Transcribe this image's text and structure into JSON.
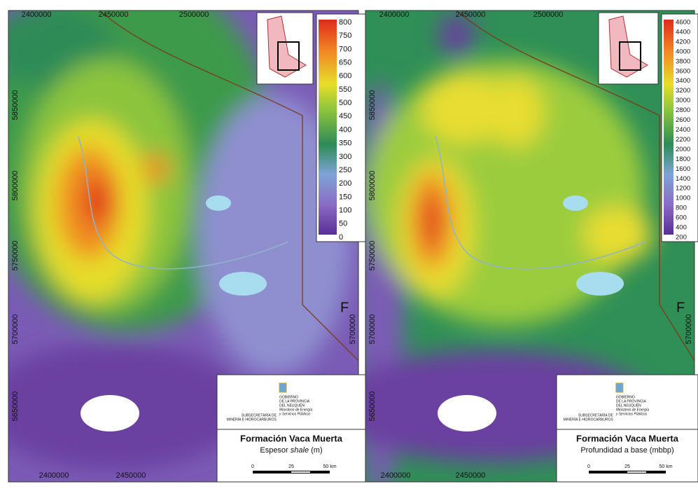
{
  "panels": [
    {
      "top_labels": [
        "2400000",
        "2450000",
        "2500000"
      ],
      "bottom_labels": [
        "2400000",
        "2450000"
      ],
      "left_labels": [
        "5850000",
        "5800000",
        "5750000",
        "5700000",
        "5650000"
      ],
      "right_labels": [
        "5700000"
      ],
      "edge_letter": "F",
      "legend": [
        "800",
        "750",
        "700",
        "650",
        "600",
        "550",
        "500",
        "450",
        "400",
        "350",
        "300",
        "250",
        "200",
        "150",
        "100",
        "50",
        "0"
      ],
      "agency": [
        "SUBSECRETARÍA DE",
        "MINERÍA E HIDROCARBUROS"
      ],
      "government": [
        "GOBIERNO",
        "DE LA PROVINCIA",
        "DEL NEUQUÉN",
        "Ministerio de Energía",
        "y Servicios Públicos"
      ],
      "title": "Formación Vaca Muerta",
      "subtitle": [
        "Espesor ",
        "shale",
        " (m)"
      ],
      "scale": [
        "0",
        "25",
        "50 km"
      ]
    },
    {
      "top_labels": [
        "2400000",
        "2450000",
        "2500000"
      ],
      "bottom_labels": [
        "2400000",
        "2450000"
      ],
      "left_labels": [
        "5850000",
        "5800000",
        "5750000",
        "5700000",
        "5650000"
      ],
      "right_labels": [
        "5700000"
      ],
      "edge_letter": "F",
      "legend": [
        "4600",
        "4400",
        "4200",
        "4000",
        "3800",
        "3600",
        "3400",
        "3200",
        "3000",
        "2800",
        "2600",
        "2400",
        "2200",
        "2000",
        "1800",
        "1600",
        "1400",
        "1200",
        "1000",
        "800",
        "600",
        "400",
        "200"
      ],
      "agency": [
        "SUBSECRETARÍA DE",
        "MINERÍA E HIDROCARBUROS"
      ],
      "government": [
        "GOBIERNO",
        "DE LA PROVINCIA",
        "DEL NEUQUÉN",
        "Ministerio de Energía",
        "y Servicios Públicos"
      ],
      "title": "Formación Vaca Muerta",
      "subtitle": [
        "Profundidad a base (mbbp)"
      ],
      "scale": [
        "0",
        "25",
        "50 km"
      ]
    }
  ]
}
